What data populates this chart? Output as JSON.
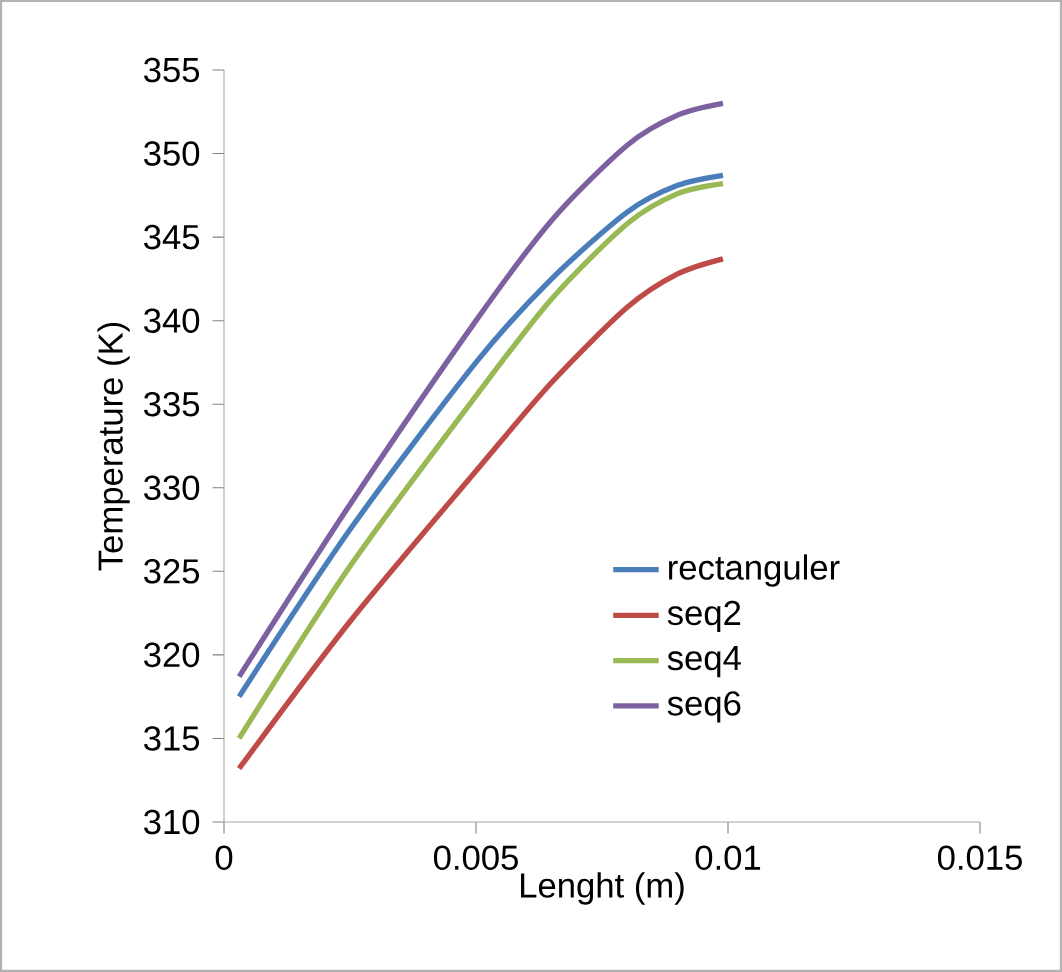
{
  "chart_data": {
    "type": "line",
    "xlabel": "Lenght (m)",
    "ylabel": "Temperature (K)",
    "xlim": [
      0,
      0.015
    ],
    "xticks": [
      0,
      0.005,
      0.01,
      0.015
    ],
    "ylim": [
      310,
      355
    ],
    "yticks": [
      310,
      315,
      320,
      325,
      330,
      335,
      340,
      345,
      350,
      355
    ],
    "grid": false,
    "legend": "right",
    "marker": "none",
    "line_style": "solid",
    "x": [
      0.0003,
      0.0025,
      0.005,
      0.0065,
      0.008,
      0.009,
      0.0099
    ],
    "series": [
      {
        "name": "rectanguler",
        "color": "#4a7ebb",
        "values": [
          317.5,
          327.5,
          337.5,
          342.5,
          346.5,
          348.1,
          348.7
        ]
      },
      {
        "name": "seq2",
        "color": "#be4b48",
        "values": [
          313.2,
          322.0,
          331.0,
          336.3,
          340.8,
          342.8,
          343.7
        ]
      },
      {
        "name": "seq4",
        "color": "#98b954",
        "values": [
          315.0,
          325.3,
          335.5,
          341.3,
          345.8,
          347.6,
          348.2
        ]
      },
      {
        "name": "seq6",
        "color": "#7d60a0",
        "values": [
          318.7,
          329.0,
          340.0,
          346.0,
          350.5,
          352.3,
          353.0
        ]
      }
    ]
  }
}
